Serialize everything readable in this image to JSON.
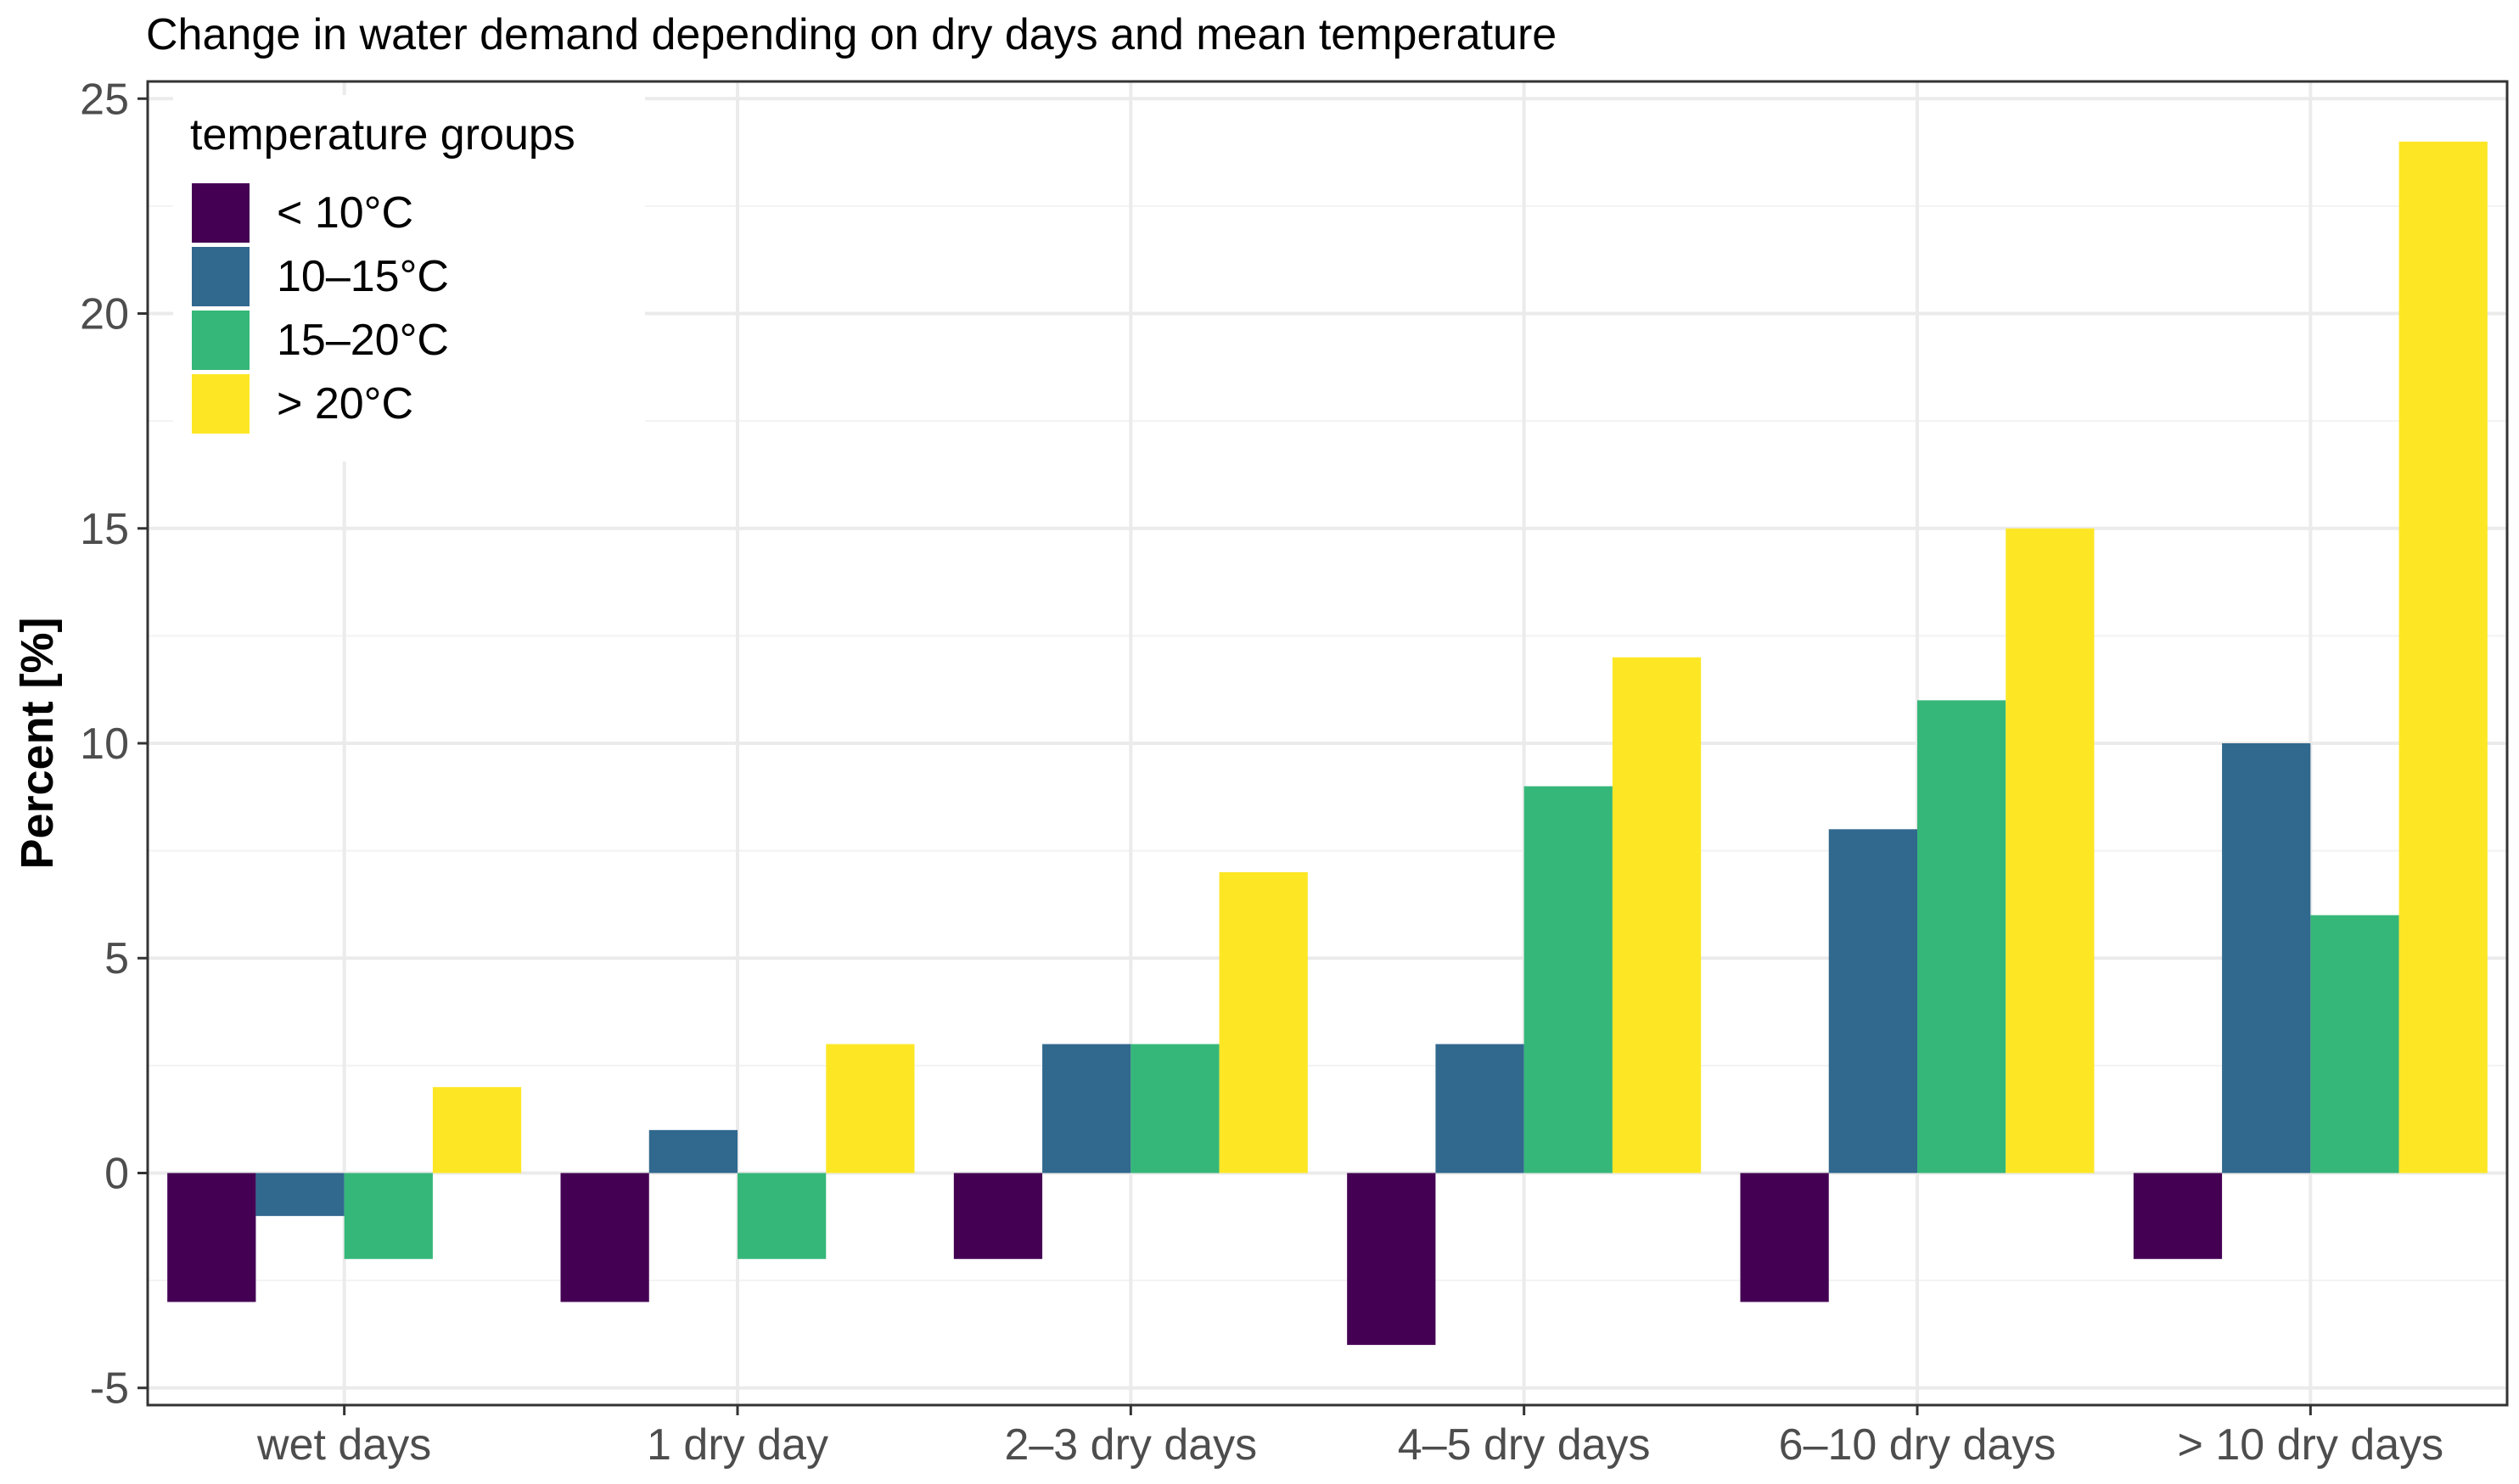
{
  "chart_data": {
    "type": "bar",
    "title": "Change in water demand depending on dry days and mean temperature",
    "xlabel": "",
    "ylabel": "Percent [%]",
    "ylim": [
      -5.4,
      25.4
    ],
    "yticks": [
      -5,
      0,
      5,
      10,
      15,
      20,
      25
    ],
    "ytick_labels": [
      "-5",
      "0",
      "5",
      "10",
      "15",
      "20",
      "25"
    ],
    "grid": true,
    "categories": [
      "wet days",
      "1 dry day",
      "2–3 dry days",
      "4–5 dry days",
      "6–10 dry days",
      "> 10 dry days"
    ],
    "legend": {
      "title": "temperature groups",
      "position": "top-left"
    },
    "series": [
      {
        "name": "< 10°C",
        "color": "#440154",
        "values": [
          -3,
          -3,
          -2,
          -4,
          -3,
          -2
        ]
      },
      {
        "name": "10–15°C",
        "color": "#31688e",
        "values": [
          -1,
          1,
          3,
          3,
          8,
          10
        ]
      },
      {
        "name": "15–20°C",
        "color": "#35b779",
        "values": [
          -2,
          -2,
          3,
          9,
          11,
          6
        ]
      },
      {
        "name": "> 20°C",
        "color": "#fde725",
        "values": [
          2,
          3,
          7,
          12,
          15,
          24
        ]
      }
    ]
  }
}
